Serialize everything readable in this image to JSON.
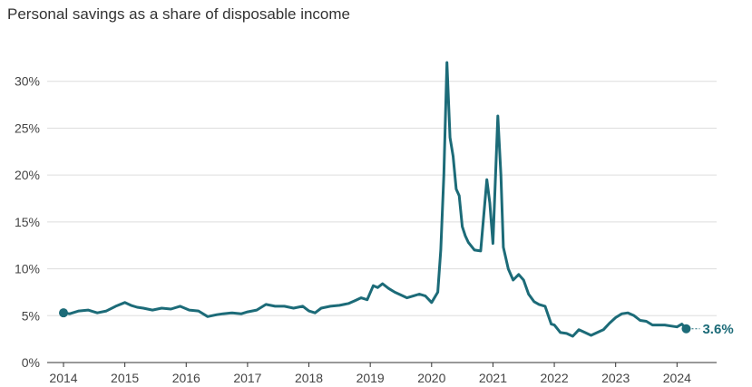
{
  "chart_data": {
    "type": "line",
    "title": "Personal savings as a share of disposable income",
    "xlabel": "",
    "ylabel": "",
    "xlim": [
      2014,
      2024.35
    ],
    "ylim": [
      0,
      32
    ],
    "grid": true,
    "legend": "none",
    "line_color": "#1c6b78",
    "grid_color": "#dddddd",
    "y_ticks": [
      {
        "value": 0,
        "label": "0%"
      },
      {
        "value": 5,
        "label": "5%"
      },
      {
        "value": 10,
        "label": "10%"
      },
      {
        "value": 15,
        "label": "15%"
      },
      {
        "value": 20,
        "label": "20%"
      },
      {
        "value": 25,
        "label": "25%"
      },
      {
        "value": 30,
        "label": "30%"
      }
    ],
    "x_ticks": [
      {
        "value": 2014,
        "label": "2014"
      },
      {
        "value": 2015,
        "label": "2015"
      },
      {
        "value": 2016,
        "label": "2016"
      },
      {
        "value": 2017,
        "label": "2017"
      },
      {
        "value": 2018,
        "label": "2018"
      },
      {
        "value": 2019,
        "label": "2019"
      },
      {
        "value": 2020,
        "label": "2020"
      },
      {
        "value": 2021,
        "label": "2021"
      },
      {
        "value": 2022,
        "label": "2022"
      },
      {
        "value": 2023,
        "label": "2023"
      },
      {
        "value": 2024,
        "label": "2024"
      }
    ],
    "end_label": "3.6%",
    "series": [
      {
        "x": [
          2014.0,
          2014.1,
          2014.25,
          2014.4,
          2014.55,
          2014.7,
          2014.85,
          2015.0,
          2015.1,
          2015.2,
          2015.3,
          2015.45,
          2015.6,
          2015.75,
          2015.9,
          2016.05,
          2016.2,
          2016.35,
          2016.5,
          2016.6,
          2016.75,
          2016.9,
          2017.0,
          2017.15,
          2017.3,
          2017.45,
          2017.6,
          2017.75,
          2017.9,
          2018.0,
          2018.1,
          2018.2,
          2018.35,
          2018.5,
          2018.65,
          2018.75,
          2018.85,
          2018.95,
          2019.05,
          2019.12,
          2019.2,
          2019.3,
          2019.4,
          2019.5,
          2019.6,
          2019.7,
          2019.8,
          2019.9,
          2020.0,
          2020.1,
          2020.15,
          2020.2,
          2020.25,
          2020.3,
          2020.35,
          2020.4,
          2020.45,
          2020.5,
          2020.55,
          2020.6,
          2020.7,
          2020.8,
          2020.9,
          2020.95,
          2021.0,
          2021.08,
          2021.13,
          2021.17,
          2021.25,
          2021.33,
          2021.42,
          2021.5,
          2021.58,
          2021.67,
          2021.75,
          2021.85,
          2021.95,
          2022.0,
          2022.1,
          2022.2,
          2022.3,
          2022.4,
          2022.5,
          2022.6,
          2022.7,
          2022.8,
          2022.9,
          2023.0,
          2023.1,
          2023.2,
          2023.3,
          2023.4,
          2023.5,
          2023.6,
          2023.7,
          2023.8,
          2023.9,
          2024.0,
          2024.08,
          2024.15
        ],
        "values": [
          5.3,
          5.2,
          5.5,
          5.6,
          5.3,
          5.5,
          6.0,
          6.4,
          6.1,
          5.9,
          5.8,
          5.6,
          5.8,
          5.7,
          6.0,
          5.6,
          5.5,
          4.9,
          5.1,
          5.2,
          5.3,
          5.2,
          5.4,
          5.6,
          6.2,
          6.0,
          6.0,
          5.8,
          6.0,
          5.5,
          5.3,
          5.8,
          6.0,
          6.1,
          6.3,
          6.6,
          6.9,
          6.7,
          8.2,
          8.0,
          8.4,
          7.9,
          7.5,
          7.2,
          6.9,
          7.1,
          7.3,
          7.1,
          6.4,
          7.5,
          12.0,
          20.0,
          32.0,
          24.0,
          22.0,
          18.5,
          17.8,
          14.5,
          13.5,
          12.8,
          12.0,
          11.9,
          19.5,
          17.0,
          12.7,
          26.3,
          20.0,
          12.3,
          10.0,
          8.8,
          9.4,
          8.8,
          7.3,
          6.5,
          6.2,
          6.0,
          4.1,
          4.0,
          3.2,
          3.1,
          2.8,
          3.5,
          3.2,
          2.9,
          3.2,
          3.5,
          4.2,
          4.8,
          5.2,
          5.3,
          5.0,
          4.5,
          4.4,
          4.0,
          4.0,
          4.0,
          3.9,
          3.8,
          4.1,
          3.6
        ]
      }
    ]
  }
}
